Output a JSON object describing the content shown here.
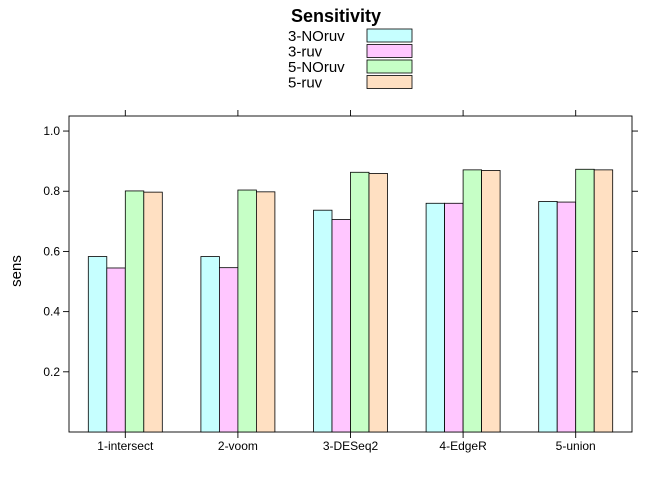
{
  "chart_data": {
    "type": "bar",
    "title": "Sensitivity",
    "xlabel": "",
    "ylabel": "sens",
    "ylim": [
      0,
      1.05
    ],
    "yticks": [
      0.2,
      0.4,
      0.6,
      0.8,
      1.0
    ],
    "ytick_labels": [
      "0.2",
      "0.4",
      "0.6",
      "0.8",
      "1.0"
    ],
    "categories": [
      "1-intersect",
      "2-voom",
      "3-DESeq2",
      "4-EdgeR",
      "5-union"
    ],
    "series": [
      {
        "name": "3-NOruv",
        "color": "#C6FFFF",
        "values": [
          0.583,
          0.583,
          0.737,
          0.76,
          0.766
        ]
      },
      {
        "name": "3-ruv",
        "color": "#FFC6FF",
        "values": [
          0.545,
          0.546,
          0.706,
          0.76,
          0.764
        ]
      },
      {
        "name": "5-NOruv",
        "color": "#C6FFC6",
        "values": [
          0.801,
          0.804,
          0.863,
          0.871,
          0.873
        ]
      },
      {
        "name": "5-ruv",
        "color": "#FFE0C2",
        "values": [
          0.797,
          0.798,
          0.859,
          0.869,
          0.871
        ]
      }
    ],
    "legend_position": "top",
    "grid": false
  }
}
